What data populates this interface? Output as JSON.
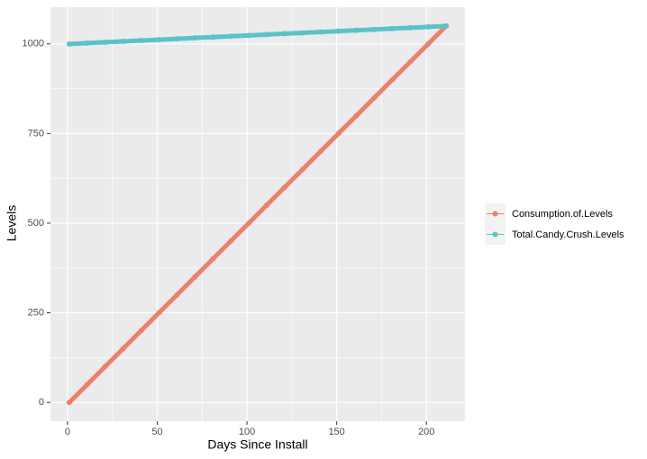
{
  "chart_data": {
    "type": "line",
    "x_label": "Days Since Install",
    "y_label": "Levels",
    "x": [
      1,
      11,
      21,
      31,
      41,
      51,
      61,
      71,
      81,
      91,
      101,
      111,
      121,
      131,
      141,
      151,
      161,
      171,
      181,
      191,
      201,
      211
    ],
    "series": [
      {
        "name": "Consumption.of.Levels",
        "color": "#f07e6e",
        "values": [
          0,
          50,
          100,
          150,
          200,
          250,
          300,
          350,
          400,
          450,
          500,
          550,
          600,
          650,
          700,
          750,
          800,
          850,
          900,
          950,
          1000,
          1050
        ]
      },
      {
        "name": "Total.Candy.Crush.Levels",
        "color": "#5bc2c7",
        "values": [
          1000,
          1002.4,
          1004.8,
          1007.1,
          1009.5,
          1011.9,
          1014.3,
          1016.7,
          1019.0,
          1021.4,
          1023.8,
          1026.2,
          1028.6,
          1031.0,
          1033.3,
          1035.7,
          1038.1,
          1040.5,
          1042.9,
          1045.2,
          1047.6,
          1050
        ]
      }
    ],
    "xlim": [
      -9.5,
      221.5
    ],
    "ylim": [
      -52.5,
      1102.5
    ],
    "xticks": [
      0,
      50,
      100,
      150,
      200
    ],
    "yticks": [
      0,
      250,
      500,
      750,
      1000
    ],
    "xminor": [
      25,
      75,
      125,
      175
    ],
    "yminor": [
      125,
      375,
      625,
      875
    ],
    "grid": true,
    "legend": "right"
  }
}
